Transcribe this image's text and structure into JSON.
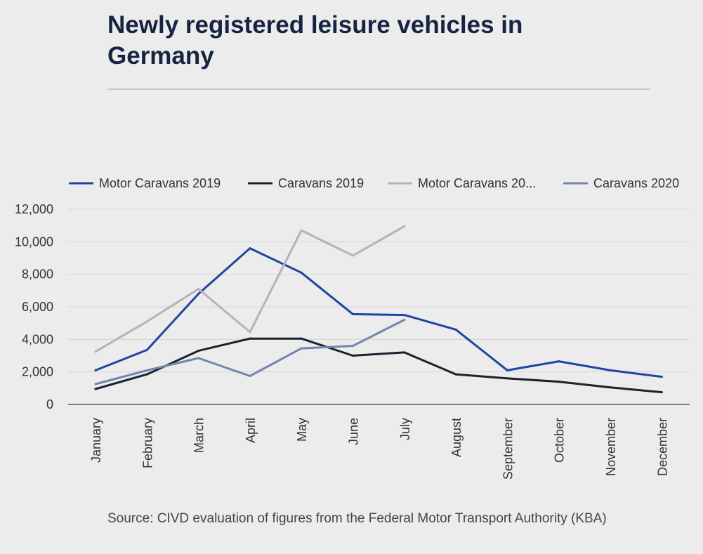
{
  "title": "Newly registered leisure vehicles in Germany",
  "source": "Source: CIVD evaluation of figures from the Federal Motor Transport Authority (KBA)",
  "chart_data": {
    "type": "line",
    "title": "Newly registered leisure vehicles in Germany",
    "categories": [
      "January",
      "February",
      "March",
      "April",
      "May",
      "June",
      "July",
      "August",
      "September",
      "October",
      "November",
      "December"
    ],
    "ylim": [
      0,
      12000
    ],
    "yticks": [
      0,
      2000,
      4000,
      6000,
      8000,
      10000,
      12000
    ],
    "ytick_labels": [
      "0",
      "2,000",
      "4,000",
      "6,000",
      "8,000",
      "10,000",
      "12,000"
    ],
    "grid": true,
    "legend_position": "top",
    "series": [
      {
        "name": "Motor Caravans 2019",
        "legend_label": "Motor Caravans 2019",
        "color": "#1f45a0",
        "values": [
          2100,
          3350,
          6800,
          9600,
          8100,
          5550,
          5500,
          4600,
          2100,
          2650,
          2100,
          1700
        ]
      },
      {
        "name": "Caravans 2019",
        "legend_label": "Caravans 2019",
        "color": "#17232f",
        "values": [
          950,
          1850,
          3300,
          4050,
          4050,
          3000,
          3200,
          1850,
          1600,
          1400,
          1050,
          750
        ]
      },
      {
        "name": "Motor Caravans 2020",
        "legend_label": "Motor Caravans 20...",
        "color": "#b4b4b4",
        "values": [
          3250,
          5100,
          7100,
          4450,
          10700,
          9150,
          10950,
          null,
          null,
          null,
          null,
          null
        ]
      },
      {
        "name": "Caravans 2020",
        "legend_label": "Caravans 2020",
        "color": "#7285ad",
        "values": [
          1250,
          2100,
          2850,
          1750,
          3450,
          3600,
          5200,
          null,
          null,
          null,
          null,
          null
        ]
      }
    ]
  }
}
